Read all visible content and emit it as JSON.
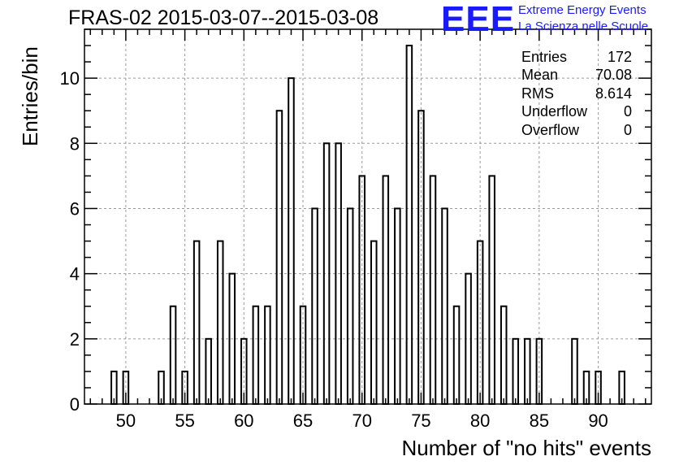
{
  "title": "FRAS-02 2015-03-07--2015-03-08",
  "logo": {
    "mark": "EEE",
    "line1": "Extreme Energy Events",
    "line2": "La Scienza nelle Scuole",
    "color": "#1a1aff"
  },
  "stats": [
    {
      "label": "Entries",
      "value": "172"
    },
    {
      "label": "Mean",
      "value": "70.08"
    },
    {
      "label": "RMS",
      "value": "8.614"
    },
    {
      "label": "Underflow",
      "value": "0"
    },
    {
      "label": "Overflow",
      "value": "0"
    }
  ],
  "chart_data": {
    "type": "bar",
    "title": "FRAS-02 2015-03-07--2015-03-08",
    "xlabel": "Number of \"no hits\" events",
    "ylabel": "Entries/bin",
    "xlim": [
      46.5,
      94.5
    ],
    "ylim": [
      0,
      11.5
    ],
    "bin_width": 1,
    "x_ticks": [
      50,
      55,
      60,
      65,
      70,
      75,
      80,
      85,
      90
    ],
    "y_ticks": [
      0,
      2,
      4,
      6,
      8,
      10
    ],
    "grid": true,
    "legend": "top-right stats box",
    "bins": [
      {
        "x": 49,
        "y": 1
      },
      {
        "x": 50,
        "y": 1
      },
      {
        "x": 53,
        "y": 1
      },
      {
        "x": 54,
        "y": 3
      },
      {
        "x": 55,
        "y": 1
      },
      {
        "x": 56,
        "y": 5
      },
      {
        "x": 57,
        "y": 2
      },
      {
        "x": 58,
        "y": 5
      },
      {
        "x": 59,
        "y": 4
      },
      {
        "x": 60,
        "y": 2
      },
      {
        "x": 61,
        "y": 3
      },
      {
        "x": 62,
        "y": 3
      },
      {
        "x": 63,
        "y": 9
      },
      {
        "x": 64,
        "y": 10
      },
      {
        "x": 65,
        "y": 3
      },
      {
        "x": 66,
        "y": 6
      },
      {
        "x": 67,
        "y": 8
      },
      {
        "x": 68,
        "y": 8
      },
      {
        "x": 69,
        "y": 6
      },
      {
        "x": 70,
        "y": 7
      },
      {
        "x": 71,
        "y": 5
      },
      {
        "x": 72,
        "y": 7
      },
      {
        "x": 73,
        "y": 6
      },
      {
        "x": 74,
        "y": 11
      },
      {
        "x": 75,
        "y": 9
      },
      {
        "x": 76,
        "y": 7
      },
      {
        "x": 77,
        "y": 6
      },
      {
        "x": 78,
        "y": 3
      },
      {
        "x": 79,
        "y": 4
      },
      {
        "x": 80,
        "y": 5
      },
      {
        "x": 81,
        "y": 7
      },
      {
        "x": 82,
        "y": 3
      },
      {
        "x": 83,
        "y": 2
      },
      {
        "x": 84,
        "y": 2
      },
      {
        "x": 85,
        "y": 2
      },
      {
        "x": 88,
        "y": 2
      },
      {
        "x": 89,
        "y": 1
      },
      {
        "x": 90,
        "y": 1
      },
      {
        "x": 92,
        "y": 1
      }
    ]
  }
}
